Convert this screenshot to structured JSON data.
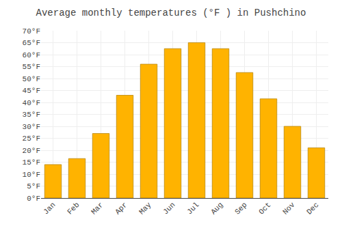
{
  "chart_data": {
    "type": "bar",
    "title": "Average monthly temperatures (°F ) in Pushchino",
    "categories": [
      "Jan",
      "Feb",
      "Mar",
      "Apr",
      "May",
      "Jun",
      "Jul",
      "Aug",
      "Sep",
      "Oct",
      "Nov",
      "Dec"
    ],
    "values": [
      14.0,
      16.5,
      27.0,
      43.0,
      56.0,
      62.5,
      65.0,
      62.5,
      52.5,
      41.5,
      30.0,
      21.0
    ],
    "color": "#FFB300",
    "ylim": [
      0,
      70
    ],
    "yticks": [
      {
        "value": 0,
        "label": "0°F"
      },
      {
        "value": 5,
        "label": "5°F"
      },
      {
        "value": 10,
        "label": "10°F"
      },
      {
        "value": 15,
        "label": "15°F"
      },
      {
        "value": 20,
        "label": "20°F"
      },
      {
        "value": 25,
        "label": "25°F"
      },
      {
        "value": 30,
        "label": "30°F"
      },
      {
        "value": 35,
        "label": "35°F"
      },
      {
        "value": 40,
        "label": "40°F"
      },
      {
        "value": 45,
        "label": "45°F"
      },
      {
        "value": 50,
        "label": "50°F"
      },
      {
        "value": 55,
        "label": "55°F"
      },
      {
        "value": 60,
        "label": "60°F"
      },
      {
        "value": 65,
        "label": "65°F"
      },
      {
        "value": 70,
        "label": "70°F"
      }
    ],
    "grid": true
  }
}
